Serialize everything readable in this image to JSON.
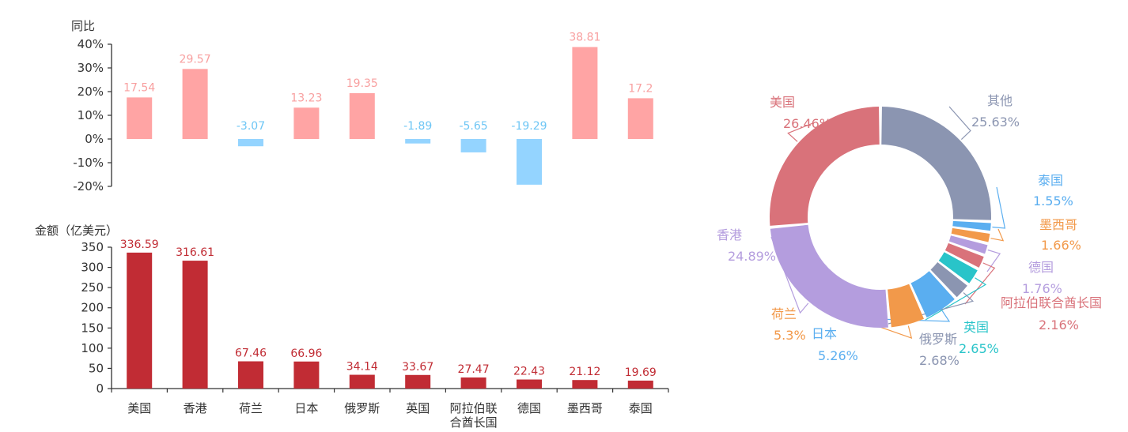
{
  "colors": {
    "positive": "#FFA4A4",
    "negative": "#94D4FF",
    "positive_label": "#F8A0A0",
    "negative_label": "#6EC6F5",
    "amount": "#C12C34",
    "amount_label": "#C12C34",
    "axis": "#333333",
    "axis_text": "#333333"
  },
  "chart_data": [
    {
      "type": "bar",
      "ylabel": "同比",
      "categories": [
        "美国",
        "香港",
        "荷兰",
        "日本",
        "俄罗斯",
        "英国",
        "阿拉伯联合酋长国",
        "德国",
        "墨西哥",
        "泰国"
      ],
      "values": [
        17.54,
        29.57,
        -3.07,
        13.23,
        19.35,
        -1.89,
        -5.65,
        -19.29,
        38.81,
        17.2
      ],
      "value_labels": [
        "17.54",
        "29.57",
        "-3.07",
        "13.23",
        "19.35",
        "-1.89",
        "-5.65",
        "-19.29",
        "38.81",
        "17.2"
      ],
      "yticks": [
        "40%",
        "30%",
        "20%",
        "10%",
        "0%",
        "-10%",
        "-20%"
      ],
      "ylim": [
        -20,
        40
      ],
      "grid": false
    },
    {
      "type": "bar",
      "ylabel": "金额（亿美元）",
      "categories": [
        "美国",
        "香港",
        "荷兰",
        "日本",
        "俄罗斯",
        "英国",
        "阿拉伯联合酋长国",
        "德国",
        "墨西哥",
        "泰国"
      ],
      "category_lines": [
        [
          "美国"
        ],
        [
          "香港"
        ],
        [
          "荷兰"
        ],
        [
          "日本"
        ],
        [
          "俄罗斯"
        ],
        [
          "英国"
        ],
        [
          "阿拉伯联",
          "合酋长国"
        ],
        [
          "德国"
        ],
        [
          "墨西哥"
        ],
        [
          "泰国"
        ]
      ],
      "values": [
        336.59,
        316.61,
        67.46,
        66.96,
        34.14,
        33.67,
        27.47,
        22.43,
        21.12,
        19.69
      ],
      "value_labels": [
        "336.59",
        "316.61",
        "67.46",
        "66.96",
        "34.14",
        "33.67",
        "27.47",
        "22.43",
        "21.12",
        "19.69"
      ],
      "yticks": [
        "350",
        "300",
        "250",
        "200",
        "150",
        "100",
        "50",
        "0"
      ],
      "ylim": [
        0,
        350
      ],
      "grid": false
    },
    {
      "type": "pie",
      "donut": true,
      "slices": [
        {
          "name": "其他",
          "value": 25.63,
          "label": "25.63%",
          "color": "#8B95B1"
        },
        {
          "name": "泰国",
          "value": 1.55,
          "label": "1.55%",
          "color": "#5AAEF0"
        },
        {
          "name": "墨西哥",
          "value": 1.66,
          "label": "1.66%",
          "color": "#F2994A"
        },
        {
          "name": "德国",
          "value": 1.76,
          "label": "1.76%",
          "color": "#B49DDE"
        },
        {
          "name": "阿拉伯联合酋长国",
          "value": 2.16,
          "label": "2.16%",
          "color": "#D9727A"
        },
        {
          "name": "英国",
          "value": 2.65,
          "label": "2.65%",
          "color": "#29C4C9"
        },
        {
          "name": "俄罗斯",
          "value": 2.68,
          "label": "2.68%",
          "color": "#8B95B1"
        },
        {
          "name": "日本",
          "value": 5.26,
          "label": "5.26%",
          "color": "#5AAEF0"
        },
        {
          "name": "荷兰",
          "value": 5.3,
          "label": "5.3%",
          "color": "#F2994A"
        },
        {
          "name": "香港",
          "value": 24.89,
          "label": "24.89%",
          "color": "#B49DDE"
        },
        {
          "name": "美国",
          "value": 26.46,
          "label": "26.46%",
          "color": "#D9727A"
        }
      ]
    }
  ]
}
